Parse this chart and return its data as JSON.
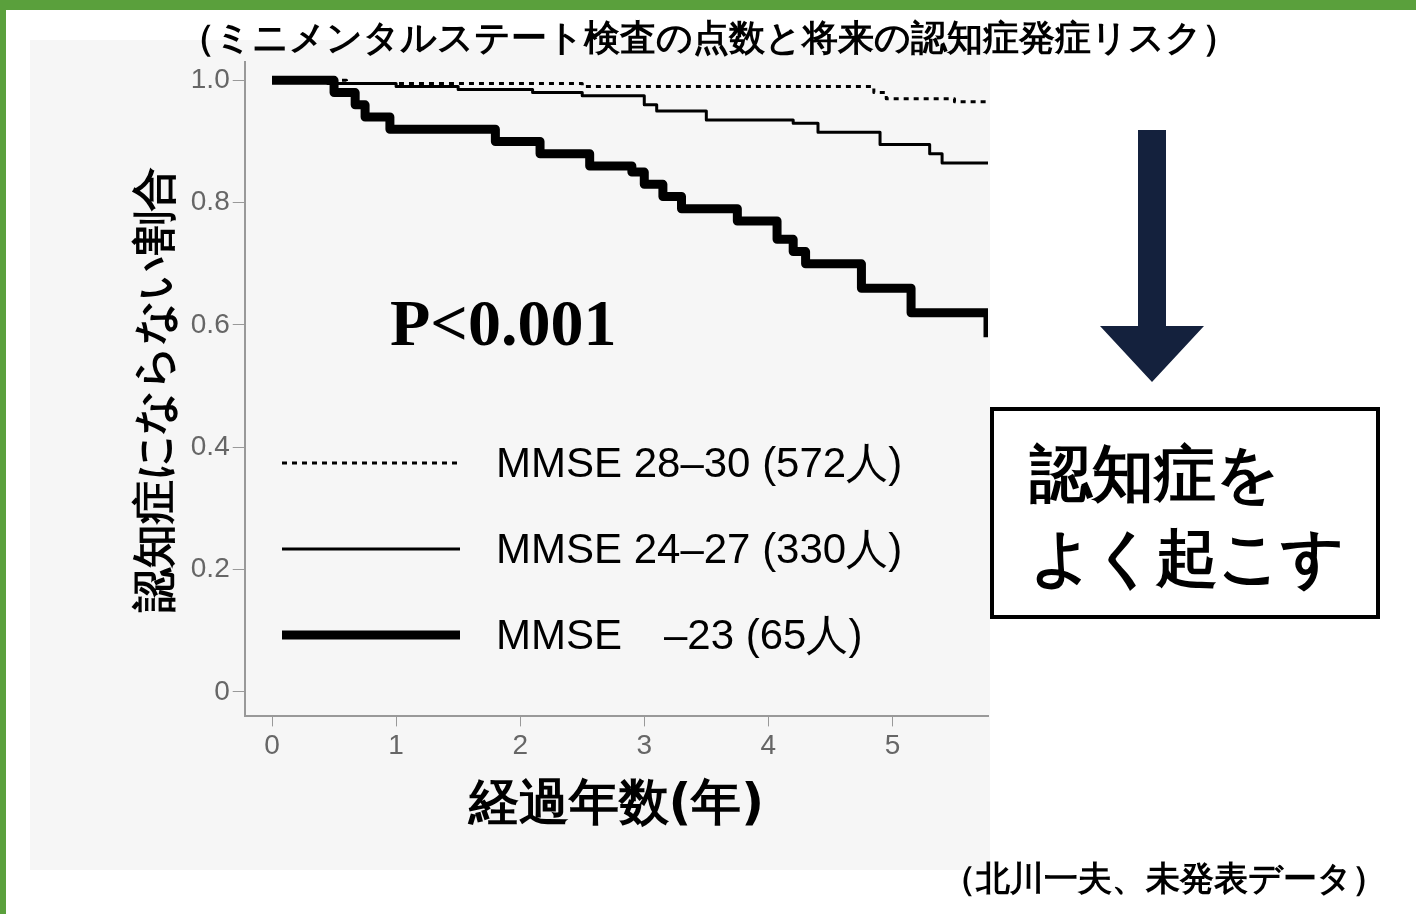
{
  "chart_data": {
    "type": "step",
    "title": "（ミニメンタルステート検査の点数と将来の認知症発症リスク）",
    "xlabel": "経過年数(年)",
    "ylabel": "認知症にならない割合",
    "annotations": [
      "P<0.001",
      "認知症を",
      "よく起こす",
      "（北川一夫、未発表データ）"
    ],
    "series": [
      {
        "name": "MMSE 28–30 (572人)",
        "color": "#000000",
        "line_style": "dotted",
        "x": [
          0,
          0.6,
          2.5,
          4.85,
          4.95,
          5.5,
          5.77
        ],
        "values": [
          1.0,
          0.995,
          0.99,
          0.98,
          0.97,
          0.965,
          0.965
        ]
      },
      {
        "name": "MMSE 24–27 (330人)",
        "color": "#000000",
        "line_style": "solid",
        "x": [
          0,
          0.45,
          1.0,
          1.5,
          2.1,
          2.5,
          3.0,
          3.1,
          3.5,
          4.2,
          4.4,
          4.9,
          5.3,
          5.4,
          5.77
        ],
        "values": [
          1.0,
          0.995,
          0.99,
          0.985,
          0.98,
          0.975,
          0.96,
          0.95,
          0.935,
          0.93,
          0.915,
          0.895,
          0.88,
          0.865,
          0.865
        ]
      },
      {
        "name": "MMSE　–23 (65人)",
        "color": "#000000",
        "line_style": "solid",
        "x": [
          0,
          0.5,
          0.67,
          0.75,
          0.95,
          1.8,
          2.16,
          2.56,
          2.9,
          3.0,
          3.15,
          3.3,
          3.75,
          4.07,
          4.2,
          4.3,
          4.75,
          5.15,
          5.77
        ],
        "values": [
          1.0,
          0.98,
          0.96,
          0.94,
          0.92,
          0.9,
          0.88,
          0.86,
          0.85,
          0.83,
          0.81,
          0.79,
          0.77,
          0.74,
          0.72,
          0.7,
          0.66,
          0.62,
          0.58
        ]
      }
    ],
    "xlim": [
      -0.22,
      5.77
    ],
    "xticks": [
      0,
      1,
      2,
      3,
      4,
      5
    ],
    "ylim": [
      -0.04,
      1.03
    ],
    "yticks": [
      0,
      0.2,
      0.4,
      0.6,
      0.8,
      {
        "value": 1.0,
        "label": "1.0"
      }
    ],
    "legend": "bottom"
  }
}
